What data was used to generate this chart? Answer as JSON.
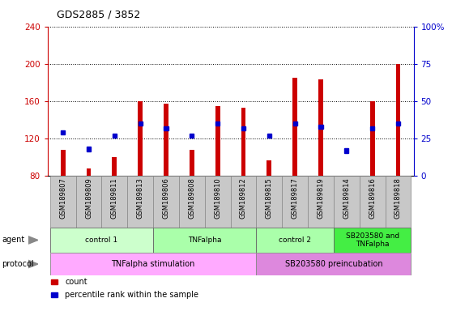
{
  "title": "GDS2885 / 3852",
  "samples": [
    "GSM189807",
    "GSM189809",
    "GSM189811",
    "GSM189813",
    "GSM189806",
    "GSM189808",
    "GSM189810",
    "GSM189812",
    "GSM189815",
    "GSM189817",
    "GSM189819",
    "GSM189814",
    "GSM189816",
    "GSM189818"
  ],
  "count_values": [
    108,
    88,
    100,
    160,
    157,
    108,
    155,
    153,
    97,
    185,
    183,
    78,
    160,
    200
  ],
  "percentile_values": [
    29,
    18,
    27,
    35,
    32,
    27,
    35,
    32,
    27,
    35,
    33,
    17,
    32,
    35
  ],
  "ylim_left": [
    80,
    240
  ],
  "ylim_right": [
    0,
    100
  ],
  "yticks_left": [
    80,
    120,
    160,
    200,
    240
  ],
  "yticks_right": [
    0,
    25,
    50,
    75,
    100
  ],
  "ylabel_left_color": "#cc0000",
  "ylabel_right_color": "#0000cc",
  "bar_color": "#cc0000",
  "percentile_color": "#0000cc",
  "bar_width": 0.18,
  "agent_groups": [
    {
      "label": "control 1",
      "start": 0,
      "end": 3,
      "color": "#ccffcc"
    },
    {
      "label": "TNFalpha",
      "start": 4,
      "end": 7,
      "color": "#aaffaa"
    },
    {
      "label": "control 2",
      "start": 8,
      "end": 10,
      "color": "#aaffaa"
    },
    {
      "label": "SB203580 and\nTNFalpha",
      "start": 11,
      "end": 13,
      "color": "#44ee44"
    }
  ],
  "protocol_groups": [
    {
      "label": "TNFalpha stimulation",
      "start": 0,
      "end": 7,
      "color": "#ffaaff"
    },
    {
      "label": "SB203580 preincubation",
      "start": 8,
      "end": 13,
      "color": "#dd88dd"
    }
  ],
  "legend_items": [
    {
      "label": "count",
      "color": "#cc0000"
    },
    {
      "label": "percentile rank within the sample",
      "color": "#0000cc"
    }
  ],
  "grid_color": "black",
  "background_color": "white"
}
